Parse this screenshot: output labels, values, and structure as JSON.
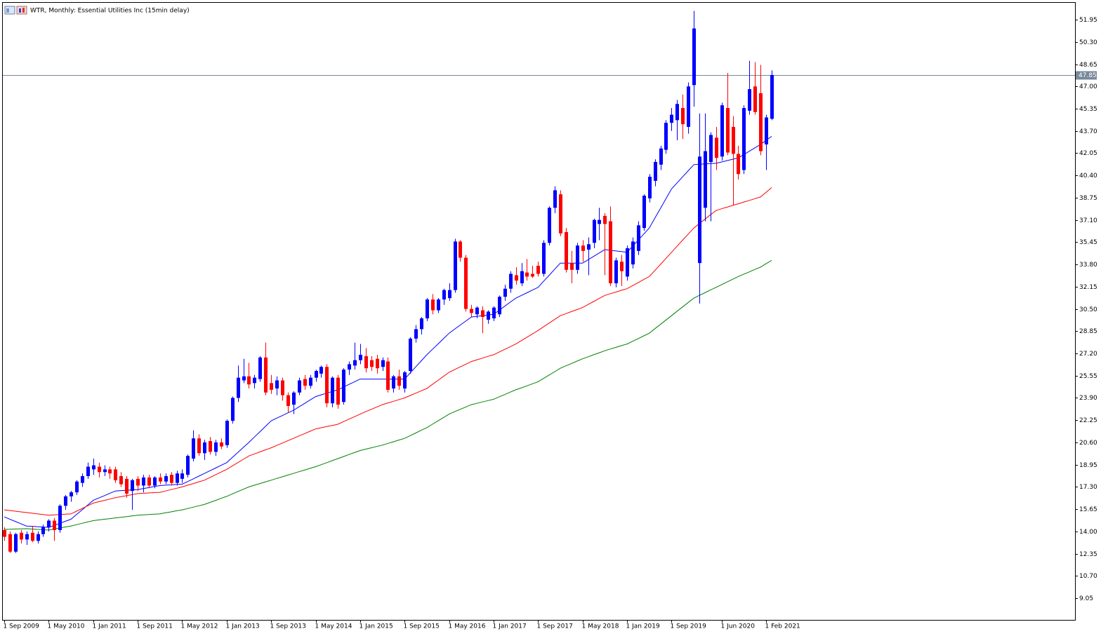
{
  "chart_data": {
    "type": "candlestick",
    "title": "WTR, Monthly:  Essential Utilities Inc (15min delay)",
    "categories": [
      "1 Sep 2009",
      null,
      null,
      null,
      null,
      null,
      null,
      null,
      "1 May 2010",
      null,
      null,
      null,
      null,
      null,
      null,
      null,
      "1 Jan 2011",
      null,
      null,
      null,
      null,
      null,
      null,
      null,
      "1 Sep 2011",
      null,
      null,
      null,
      null,
      null,
      null,
      null,
      "1 May 2012",
      null,
      null,
      null,
      null,
      null,
      null,
      null,
      "1 Jan 2013",
      null,
      null,
      null,
      null,
      null,
      null,
      null,
      "1 Sep 2013",
      null,
      null,
      null,
      null,
      null,
      null,
      null,
      "1 May 2014",
      null,
      null,
      null,
      null,
      null,
      null,
      null,
      "1 Jan 2015",
      null,
      null,
      null,
      null,
      null,
      null,
      null,
      "1 Sep 2015",
      null,
      null,
      null,
      null,
      null,
      null,
      null,
      "1 May 2016",
      null,
      null,
      null,
      null,
      null,
      null,
      null,
      "1 Jan 2017",
      null,
      null,
      null,
      null,
      null,
      null,
      null,
      "1 Sep 2017",
      null,
      null,
      null,
      null,
      null,
      null,
      null,
      "1 May 2018",
      null,
      null,
      null,
      null,
      null,
      null,
      null,
      "1 Jan 2019",
      null,
      null,
      null,
      null,
      null,
      null,
      null,
      "1 Sep 2019",
      null,
      null,
      null,
      null,
      null,
      null,
      null,
      null,
      "1 Jun 2020",
      null,
      null,
      null,
      null,
      null,
      null,
      null,
      "1 Feb 2021",
      null
    ],
    "open": [
      14.1,
      13.8,
      12.5,
      13.9,
      13.4,
      13.9,
      13.3,
      13.8,
      14.3,
      14.8,
      14.1,
      15.9,
      16.6,
      16.9,
      17.6,
      18.1,
      18.6,
      18.8,
      18.4,
      18.6,
      18.6,
      18.1,
      17.9,
      17.0,
      17.9,
      17.4,
      18.0,
      17.4,
      18.0,
      17.7,
      18.2,
      17.6,
      17.9,
      18.2,
      19.4,
      20.9,
      19.8,
      20.7,
      19.9,
      20.6,
      20.4,
      22.2,
      23.9,
      25.2,
      25.5,
      25.0,
      25.3,
      26.9,
      25.0,
      24.6,
      25.2,
      24.1,
      23.4,
      24.3,
      25.3,
      24.8,
      25.4,
      25.7,
      26.2,
      23.5,
      25.4,
      23.6,
      26.0,
      26.3,
      26.7,
      27.0,
      26.7,
      26.8,
      26.2,
      26.6,
      24.6,
      25.5,
      24.6,
      25.9,
      28.3,
      29.0,
      29.8,
      31.2,
      30.4,
      31.2,
      31.3,
      31.9,
      35.5,
      34.3,
      30.5,
      30.1,
      30.4,
      29.7,
      29.8,
      30.1,
      31.4,
      32.0,
      33.0,
      32.4,
      33.2,
      33.1,
      33.7,
      33.1,
      35.4,
      38.0,
      39.0,
      36.2,
      33.9,
      33.4,
      35.2,
      34.9,
      35.4,
      36.8,
      37.4,
      37.0,
      32.4,
      34.0,
      32.9,
      33.8,
      34.8,
      36.5,
      38.7,
      40.0,
      41.2,
      42.3,
      44.3,
      44.5,
      45.4,
      44.0,
      47.1,
      33.9,
      38.0,
      41.4,
      43.2,
      41.8,
      45.4,
      44.0,
      42.0,
      40.8,
      45.2,
      47.0,
      46.5,
      42.7,
      44.6
    ],
    "high": [
      14.3,
      14.0,
      13.9,
      14.1,
      14.0,
      14.4,
      14.0,
      14.5,
      14.9,
      15.0,
      16.0,
      16.7,
      17.0,
      17.8,
      18.3,
      19.1,
      19.4,
      19.1,
      18.9,
      18.8,
      18.8,
      18.4,
      18.1,
      17.9,
      18.1,
      18.2,
      18.2,
      18.1,
      18.3,
      18.3,
      18.4,
      18.5,
      18.6,
      19.7,
      21.5,
      21.2,
      20.8,
      21.0,
      20.8,
      20.9,
      22.3,
      24.0,
      26.3,
      26.8,
      26.5,
      25.6,
      27.0,
      28.0,
      25.6,
      25.5,
      25.4,
      24.3,
      24.4,
      25.4,
      25.6,
      25.6,
      26.0,
      26.3,
      26.4,
      25.5,
      25.6,
      26.1,
      26.6,
      28.0,
      27.9,
      27.6,
      27.0,
      27.1,
      26.9,
      26.9,
      25.6,
      26.0,
      25.9,
      28.4,
      29.3,
      29.9,
      31.3,
      31.6,
      31.3,
      32.0,
      32.4,
      35.7,
      35.6,
      34.5,
      30.8,
      30.7,
      30.7,
      30.4,
      30.7,
      31.5,
      32.3,
      33.3,
      33.6,
      33.9,
      34.2,
      33.7,
      34.0,
      35.6,
      38.1,
      39.6,
      39.3,
      36.5,
      34.8,
      35.4,
      35.6,
      35.8,
      37.2,
      38.0,
      37.6,
      38.1,
      34.3,
      34.5,
      35.2,
      35.8,
      37.0,
      39.0,
      40.5,
      41.6,
      42.6,
      44.5,
      45.4,
      46.0,
      46.4,
      47.3,
      52.6,
      45.0,
      45.0,
      43.6,
      44.0,
      45.8,
      48.0,
      44.8,
      42.6,
      45.6,
      48.9,
      48.8,
      48.6,
      44.9,
      48.2
    ],
    "low": [
      13.3,
      12.4,
      12.4,
      13.1,
      13.0,
      13.2,
      13.1,
      13.6,
      14.0,
      13.3,
      13.9,
      15.6,
      16.2,
      16.7,
      17.3,
      17.9,
      18.2,
      18.0,
      18.1,
      17.9,
      17.6,
      17.3,
      16.5,
      15.6,
      17.0,
      16.9,
      17.2,
      17.2,
      17.5,
      17.5,
      17.4,
      17.4,
      17.6,
      18.0,
      19.2,
      19.6,
      19.3,
      19.7,
      19.6,
      20.1,
      20.2,
      22.0,
      23.6,
      25.0,
      24.6,
      24.6,
      25.1,
      24.1,
      24.2,
      24.1,
      23.7,
      22.8,
      22.7,
      24.1,
      24.5,
      24.6,
      25.1,
      25.4,
      23.2,
      23.2,
      23.1,
      23.4,
      25.6,
      26.0,
      26.4,
      25.8,
      25.9,
      25.7,
      25.9,
      24.3,
      24.3,
      24.5,
      24.3,
      25.7,
      28.0,
      28.6,
      29.6,
      30.1,
      30.2,
      30.8,
      31.1,
      31.7,
      34.0,
      30.3,
      29.9,
      29.8,
      28.7,
      29.4,
      29.6,
      29.9,
      31.1,
      31.7,
      32.3,
      32.2,
      32.6,
      32.8,
      32.9,
      32.9,
      35.2,
      37.6,
      35.9,
      33.2,
      32.4,
      33.1,
      34.0,
      33.0,
      35.0,
      35.6,
      33.0,
      32.2,
      32.1,
      32.2,
      32.6,
      33.5,
      34.5,
      36.3,
      38.4,
      39.6,
      40.8,
      42.0,
      43.7,
      43.0,
      43.1,
      43.5,
      45.5,
      30.9,
      37.0,
      37.0,
      40.8,
      41.5,
      41.9,
      38.2,
      40.1,
      40.5,
      44.9,
      44.9,
      41.9,
      40.8,
      44.5
    ],
    "close": [
      13.6,
      12.5,
      13.8,
      13.4,
      13.8,
      13.3,
      13.8,
      14.3,
      14.8,
      14.1,
      15.9,
      16.6,
      16.9,
      17.7,
      18.1,
      18.8,
      18.9,
      18.4,
      18.6,
      18.3,
      17.8,
      17.5,
      16.8,
      17.8,
      17.4,
      18.0,
      17.4,
      18.0,
      17.7,
      18.1,
      17.6,
      18.3,
      18.3,
      19.6,
      20.9,
      19.8,
      20.6,
      19.9,
      20.6,
      20.3,
      22.2,
      23.9,
      25.4,
      25.5,
      24.9,
      25.4,
      26.9,
      24.3,
      24.5,
      25.2,
      24.1,
      23.3,
      24.3,
      25.2,
      24.8,
      25.4,
      25.9,
      26.2,
      23.5,
      25.4,
      23.4,
      26.0,
      26.4,
      26.7,
      27.1,
      26.1,
      26.2,
      26.1,
      26.7,
      24.5,
      25.5,
      24.8,
      25.8,
      28.3,
      29.0,
      29.8,
      31.2,
      30.4,
      31.2,
      31.9,
      31.9,
      35.5,
      34.3,
      30.5,
      30.2,
      30.6,
      29.9,
      30.3,
      30.6,
      31.4,
      32.0,
      33.1,
      32.6,
      33.3,
      32.9,
      32.9,
      33.1,
      35.4,
      38.0,
      39.3,
      36.1,
      33.4,
      33.4,
      35.2,
      34.8,
      35.3,
      37.1,
      37.1,
      36.8,
      32.4,
      34.1,
      33.3,
      35.0,
      35.5,
      36.7,
      38.9,
      40.3,
      41.4,
      42.4,
      44.3,
      44.9,
      45.7,
      44.2,
      47.0,
      51.3,
      41.8,
      42.2,
      43.4,
      41.7,
      45.6,
      42.1,
      42.0,
      40.5,
      45.4,
      46.8,
      45.1,
      42.2,
      44.7,
      47.85
    ],
    "up_color": "#0000ff",
    "down_color": "#ff0000",
    "lines": [
      {
        "color": "#0000ff",
        "values": [
          15.08,
          14.91,
          14.74,
          14.57,
          14.4,
          14.38,
          14.35,
          14.33,
          14.3,
          14.45,
          14.6,
          14.75,
          14.9,
          15.25,
          15.6,
          15.95,
          16.3,
          16.48,
          16.65,
          16.83,
          17.0,
          17.03,
          17.05,
          17.08,
          17.1,
          17.18,
          17.25,
          17.33,
          17.4,
          17.43,
          17.45,
          17.48,
          17.5,
          17.7,
          17.9,
          18.1,
          18.3,
          18.5,
          18.7,
          18.9,
          19.1,
          19.48,
          19.85,
          20.23,
          20.6,
          21.0,
          21.4,
          21.8,
          22.2,
          22.4,
          22.59,
          22.79,
          22.98,
          23.24,
          23.49,
          23.75,
          24.0,
          24.13,
          24.25,
          24.38,
          24.5,
          24.7,
          24.9,
          25.1,
          25.3,
          25.3,
          25.3,
          25.3,
          25.3,
          25.3,
          25.3,
          25.3,
          25.3,
          25.75,
          26.2,
          26.65,
          27.1,
          27.5,
          27.9,
          28.3,
          28.7,
          29.0,
          29.3,
          29.6,
          29.9,
          29.95,
          30.0,
          30.05,
          30.1,
          30.4,
          30.7,
          31.0,
          31.3,
          31.5,
          31.7,
          31.9,
          32.1,
          32.55,
          33.0,
          33.45,
          33.9,
          33.9,
          33.9,
          33.9,
          33.9,
          34.15,
          34.4,
          34.65,
          34.9,
          34.85,
          34.8,
          34.75,
          34.7,
          35.15,
          35.6,
          36.05,
          36.5,
          37.23,
          37.95,
          38.68,
          39.4,
          39.85,
          40.3,
          40.75,
          41.2,
          41.23,
          41.25,
          41.28,
          41.3,
          41.4,
          41.5,
          41.6,
          41.7,
          41.95,
          42.2,
          42.45,
          42.7,
          43.0,
          43.3
        ]
      },
      {
        "color": "#ff0000",
        "values": [
          15.6,
          15.55,
          15.5,
          15.45,
          15.4,
          15.35,
          15.3,
          15.25,
          15.2,
          15.23,
          15.25,
          15.28,
          15.3,
          15.5,
          15.7,
          15.9,
          16.1,
          16.2,
          16.3,
          16.4,
          16.5,
          16.58,
          16.65,
          16.73,
          16.8,
          16.83,
          16.85,
          16.88,
          16.9,
          17.0,
          17.1,
          17.2,
          17.3,
          17.43,
          17.55,
          17.68,
          17.8,
          18.0,
          18.2,
          18.4,
          18.6,
          18.85,
          19.1,
          19.35,
          19.6,
          19.75,
          19.9,
          20.05,
          20.2,
          20.38,
          20.55,
          20.73,
          20.9,
          21.08,
          21.25,
          21.43,
          21.6,
          21.69,
          21.78,
          21.86,
          21.95,
          22.14,
          22.33,
          22.51,
          22.7,
          22.88,
          23.05,
          23.23,
          23.4,
          23.53,
          23.65,
          23.78,
          23.9,
          24.08,
          24.25,
          24.43,
          24.6,
          24.9,
          25.2,
          25.5,
          25.8,
          26.0,
          26.2,
          26.4,
          26.6,
          26.73,
          26.85,
          26.98,
          27.1,
          27.3,
          27.5,
          27.7,
          27.9,
          28.15,
          28.4,
          28.65,
          28.9,
          29.18,
          29.45,
          29.73,
          30.0,
          30.15,
          30.3,
          30.45,
          30.6,
          30.83,
          31.05,
          31.28,
          31.5,
          31.63,
          31.75,
          31.88,
          32.0,
          32.23,
          32.45,
          32.68,
          32.9,
          33.35,
          33.8,
          34.25,
          34.7,
          35.15,
          35.6,
          36.05,
          36.5,
          36.83,
          37.15,
          37.48,
          37.8,
          37.93,
          38.05,
          38.18,
          38.3,
          38.43,
          38.55,
          38.68,
          38.8,
          39.15,
          39.5
        ]
      },
      {
        "color": "#008000",
        "values": [
          14.15,
          14.16,
          14.18,
          14.19,
          14.2,
          14.18,
          14.15,
          14.13,
          14.1,
          14.18,
          14.25,
          14.33,
          14.4,
          14.5,
          14.6,
          14.7,
          14.8,
          14.85,
          14.9,
          14.95,
          15.0,
          15.05,
          15.1,
          15.15,
          15.2,
          15.23,
          15.25,
          15.28,
          15.3,
          15.38,
          15.45,
          15.53,
          15.6,
          15.7,
          15.8,
          15.9,
          16.0,
          16.15,
          16.3,
          16.45,
          16.6,
          16.78,
          16.95,
          17.13,
          17.3,
          17.43,
          17.55,
          17.68,
          17.8,
          17.93,
          18.05,
          18.18,
          18.3,
          18.43,
          18.55,
          18.68,
          18.8,
          18.95,
          19.1,
          19.25,
          19.4,
          19.55,
          19.7,
          19.85,
          20.0,
          20.1,
          20.2,
          20.3,
          20.4,
          20.53,
          20.65,
          20.78,
          20.9,
          21.1,
          21.3,
          21.5,
          21.7,
          21.95,
          22.2,
          22.45,
          22.7,
          22.88,
          23.05,
          23.23,
          23.4,
          23.5,
          23.6,
          23.7,
          23.8,
          23.98,
          24.15,
          24.33,
          24.5,
          24.65,
          24.8,
          24.95,
          25.1,
          25.35,
          25.6,
          25.85,
          26.1,
          26.28,
          26.45,
          26.63,
          26.8,
          26.95,
          27.1,
          27.25,
          27.4,
          27.53,
          27.65,
          27.78,
          27.9,
          28.1,
          28.3,
          28.5,
          28.7,
          29.03,
          29.35,
          29.68,
          30.0,
          30.33,
          30.65,
          30.98,
          31.3,
          31.5,
          31.7,
          31.9,
          32.1,
          32.3,
          32.5,
          32.7,
          32.9,
          33.08,
          33.25,
          33.43,
          33.6,
          33.85,
          34.1
        ]
      }
    ],
    "current_price": 47.85,
    "ylim": [
      7.44,
      53.41
    ],
    "yticks": [
      9.05,
      {
        "value": 10.7,
        "label": "10.70"
      },
      12.35,
      {
        "value": 14.0,
        "label": "14.00"
      },
      15.65,
      {
        "value": 17.3,
        "label": "17.30"
      },
      18.95,
      {
        "value": 20.6,
        "label": "20.60"
      },
      22.25,
      {
        "value": 23.9,
        "label": "23.90"
      },
      25.55,
      {
        "value": 27.2,
        "label": "27.20"
      },
      28.85,
      {
        "value": 30.5,
        "label": "30.50"
      },
      32.15,
      {
        "value": 33.8,
        "label": "33.80"
      },
      35.45,
      {
        "value": 37.1,
        "label": "37.10"
      },
      38.75,
      {
        "value": 40.4,
        "label": "40.40"
      },
      42.05,
      {
        "value": 43.7,
        "label": "43.70"
      },
      45.35,
      {
        "value": 47.0,
        "label": "47.00"
      },
      48.65,
      {
        "value": 50.3,
        "label": "50.30"
      },
      51.95
    ]
  }
}
